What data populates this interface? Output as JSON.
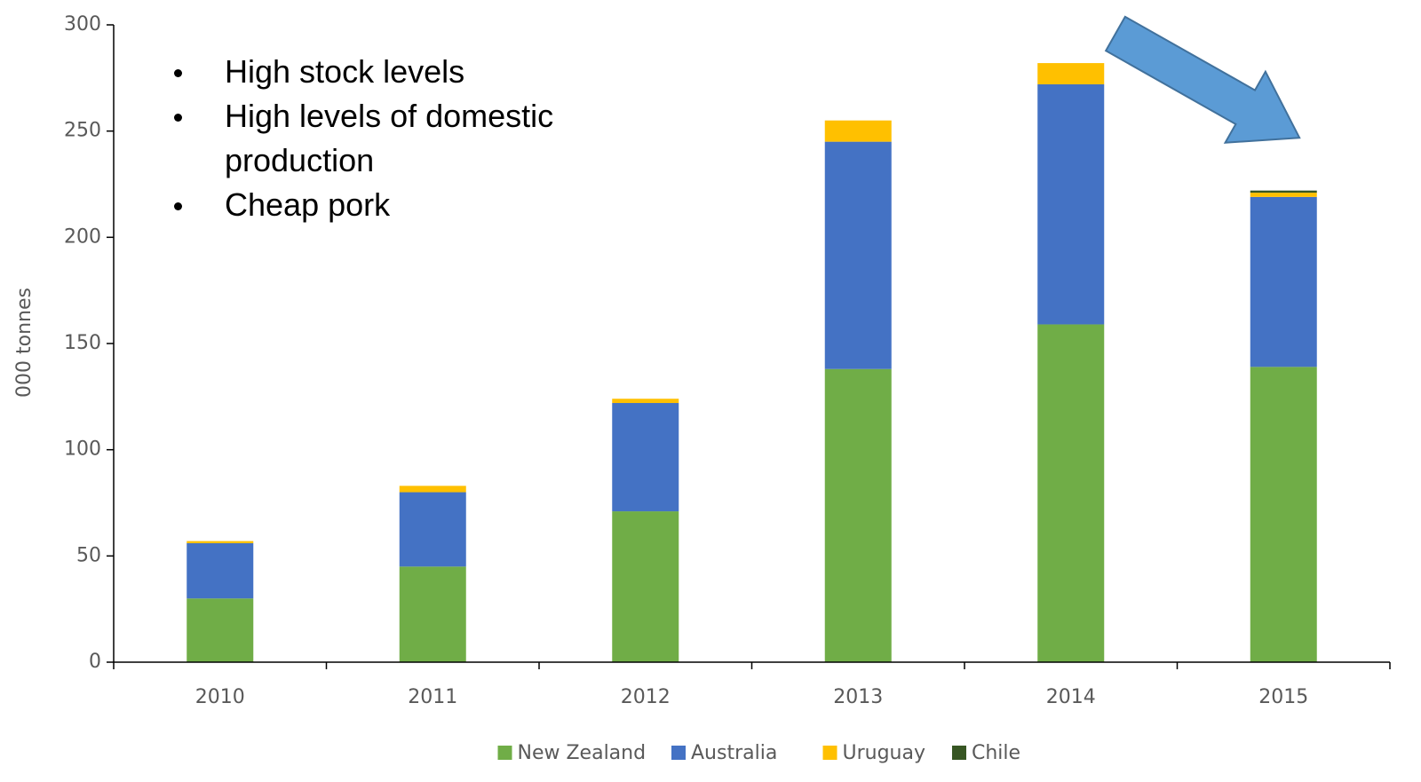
{
  "chart_data": {
    "type": "stacked_bar",
    "categories": [
      "2010",
      "2011",
      "2012",
      "2013",
      "2014",
      "2015"
    ],
    "series": [
      {
        "name": "New Zealand",
        "color": "#70ad47",
        "values": [
          30,
          45,
          71,
          138,
          159,
          139
        ]
      },
      {
        "name": "Australia",
        "color": "#4472c4",
        "values": [
          26,
          35,
          51,
          107,
          113,
          80
        ]
      },
      {
        "name": "Uruguay",
        "color": "#ffc000",
        "values": [
          1,
          3,
          2,
          10,
          10,
          2
        ]
      },
      {
        "name": "Chile",
        "color": "#375623",
        "values": [
          0,
          0,
          0,
          0,
          0,
          1
        ]
      }
    ],
    "ylabel": "000 tonnes",
    "ylim": [
      0,
      300
    ],
    "yticks": [
      0,
      50,
      100,
      150,
      200,
      250,
      300
    ],
    "grid": false,
    "legend": "bottom",
    "annotations": [
      "High stock levels",
      "High levels of domestic production",
      "Cheap pork"
    ]
  }
}
